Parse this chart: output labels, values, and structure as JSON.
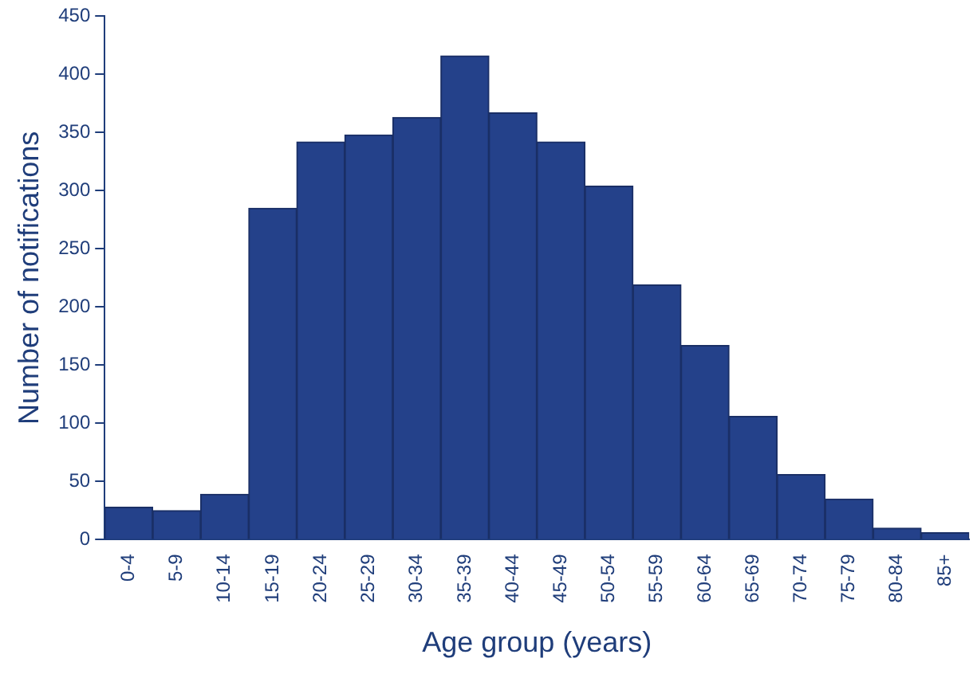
{
  "chart_data": {
    "type": "bar",
    "xlabel": "Age group (years)",
    "ylabel": "Number of notifications",
    "categories": [
      "0-4",
      "5-9",
      "10-14",
      "15-19",
      "20-24",
      "25-29",
      "30-34",
      "35-39",
      "40-44",
      "45-49",
      "50-54",
      "55-59",
      "60-64",
      "65-69",
      "70-74",
      "75-79",
      "80-84",
      "85+"
    ],
    "values": [
      28,
      25,
      39,
      285,
      342,
      348,
      363,
      416,
      367,
      342,
      304,
      219,
      167,
      106,
      56,
      35,
      10,
      6
    ],
    "color": "#24418a",
    "ylim": [
      0,
      450
    ],
    "yticks": [
      0,
      50,
      100,
      150,
      200,
      250,
      300,
      350,
      400,
      450
    ],
    "grid": false,
    "legend": false
  }
}
